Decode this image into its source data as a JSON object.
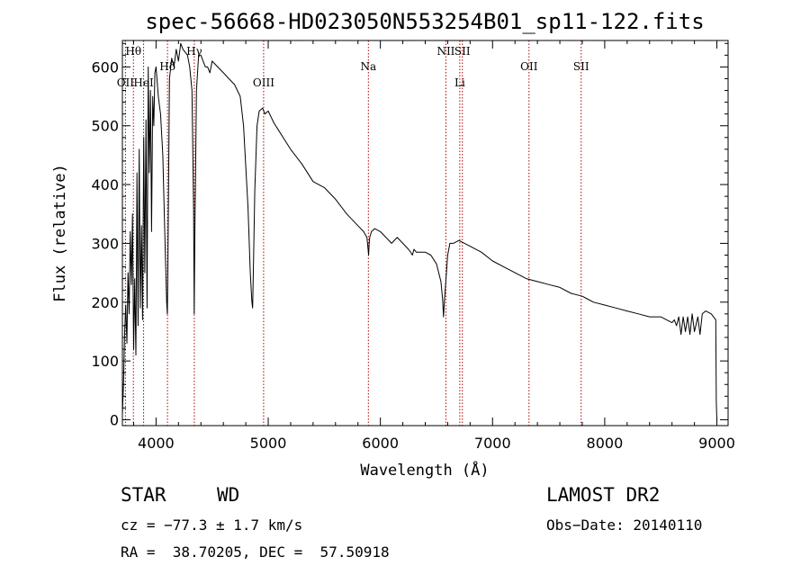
{
  "chart_data": {
    "type": "line",
    "title": "spec-56668-HD023050N553254B01_sp11-122.fits",
    "xlabel": "Wavelength (Å)",
    "ylabel": "Flux (relative)",
    "xlim": [
      3700,
      9100
    ],
    "ylim": [
      -10,
      645
    ],
    "xticks": [
      4000,
      5000,
      6000,
      7000,
      8000,
      9000
    ],
    "yticks": [
      0,
      100,
      200,
      300,
      400,
      500,
      600
    ],
    "grid": false,
    "series": [
      {
        "x": [
          3700,
          3710,
          3720,
          3730,
          3740,
          3750,
          3760,
          3770,
          3780,
          3790,
          3800,
          3810,
          3820,
          3830,
          3840,
          3850,
          3860,
          3870,
          3880,
          3890,
          3900,
          3910,
          3920,
          3930,
          3940,
          3950,
          3960,
          3970,
          3980,
          3990,
          4000,
          4020,
          4040,
          4060,
          4080,
          4095,
          4100,
          4105,
          4120,
          4140,
          4160,
          4180,
          4200,
          4220,
          4240,
          4260,
          4280,
          4300,
          4320,
          4335,
          4340,
          4345,
          4360,
          4380,
          4400,
          4420,
          4440,
          4460,
          4480,
          4500,
          4550,
          4600,
          4650,
          4700,
          4750,
          4780,
          4800,
          4820,
          4840,
          4855,
          4861,
          4868,
          4880,
          4900,
          4920,
          4950,
          4970,
          5000,
          5050,
          5100,
          5150,
          5200,
          5300,
          5400,
          5500,
          5600,
          5700,
          5750,
          5800,
          5850,
          5880,
          5895,
          5900,
          5905,
          5920,
          5950,
          6000,
          6050,
          6100,
          6150,
          6200,
          6250,
          6270,
          6285,
          6300,
          6320,
          6350,
          6400,
          6450,
          6500,
          6540,
          6555,
          6563,
          6570,
          6585,
          6600,
          6620,
          6650,
          6700,
          6800,
          6900,
          7000,
          7100,
          7200,
          7300,
          7400,
          7500,
          7600,
          7700,
          7800,
          7850,
          7900,
          8000,
          8100,
          8200,
          8300,
          8400,
          8500,
          8600,
          8620,
          8640,
          8660,
          8680,
          8700,
          8720,
          8740,
          8760,
          8780,
          8800,
          8830,
          8850,
          8870,
          8900,
          8950,
          8990,
          8995,
          9000
        ],
        "y": [
          10,
          60,
          150,
          195,
          130,
          250,
          180,
          320,
          230,
          350,
          120,
          240,
          110,
          420,
          160,
          460,
          190,
          330,
          170,
          480,
          250,
          510,
          190,
          600,
          420,
          560,
          320,
          550,
          500,
          590,
          600,
          550,
          520,
          450,
          300,
          200,
          180,
          250,
          580,
          615,
          600,
          630,
          610,
          640,
          630,
          625,
          620,
          600,
          560,
          360,
          180,
          300,
          560,
          620,
          620,
          610,
          600,
          600,
          590,
          610,
          600,
          590,
          580,
          570,
          550,
          500,
          430,
          360,
          250,
          200,
          190,
          260,
          390,
          500,
          525,
          530,
          520,
          525,
          505,
          490,
          475,
          460,
          435,
          405,
          395,
          375,
          350,
          340,
          330,
          320,
          310,
          280,
          300,
          310,
          320,
          325,
          320,
          310,
          300,
          310,
          300,
          290,
          285,
          280,
          290,
          285,
          285,
          285,
          280,
          265,
          235,
          205,
          175,
          200,
          240,
          280,
          300,
          300,
          305,
          295,
          285,
          270,
          260,
          250,
          240,
          235,
          230,
          225,
          215,
          210,
          205,
          200,
          195,
          190,
          185,
          180,
          175,
          175,
          165,
          170,
          160,
          175,
          145,
          175,
          150,
          175,
          145,
          180,
          150,
          175,
          145,
          180,
          185,
          180,
          170,
          30,
          0
        ]
      }
    ],
    "annotations": [
      {
        "label": "Hθ",
        "x": 3798,
        "y_position": "top"
      },
      {
        "label": "OII",
        "x": 3727,
        "y_position": "mid"
      },
      {
        "label": "HeI",
        "x": 3889,
        "y_position": "mid"
      },
      {
        "label": "Hδ",
        "x": 4102,
        "y_position": "upper"
      },
      {
        "label": "Hγ",
        "x": 4341,
        "y_position": "top"
      },
      {
        "label": "OIII",
        "x": 4959,
        "y_position": "mid"
      },
      {
        "label": "Na",
        "x": 5893,
        "y_position": "upper"
      },
      {
        "label": "NII",
        "x": 6584,
        "y_position": "top"
      },
      {
        "label": "Li",
        "x": 6708,
        "y_position": "mid"
      },
      {
        "label": "SII",
        "x": 6731,
        "y_position": "top"
      },
      {
        "label": "OII",
        "x": 7325,
        "y_position": "upper"
      },
      {
        "label": "SII",
        "x": 7790,
        "y_position": "upper"
      }
    ],
    "line_markers": [
      3727,
      3798,
      3889,
      4102,
      4341,
      4959,
      5893,
      6584,
      6708,
      6731,
      7325,
      7790
    ]
  },
  "info": {
    "class": "STAR",
    "subclass": "WD",
    "survey": "LAMOST DR2",
    "cz": "cz = −77.3 ± 1.7 km/s",
    "obs_date": "Obs−Date: 20140110",
    "radec": "RA =  38.70205, DEC =  57.50918"
  }
}
